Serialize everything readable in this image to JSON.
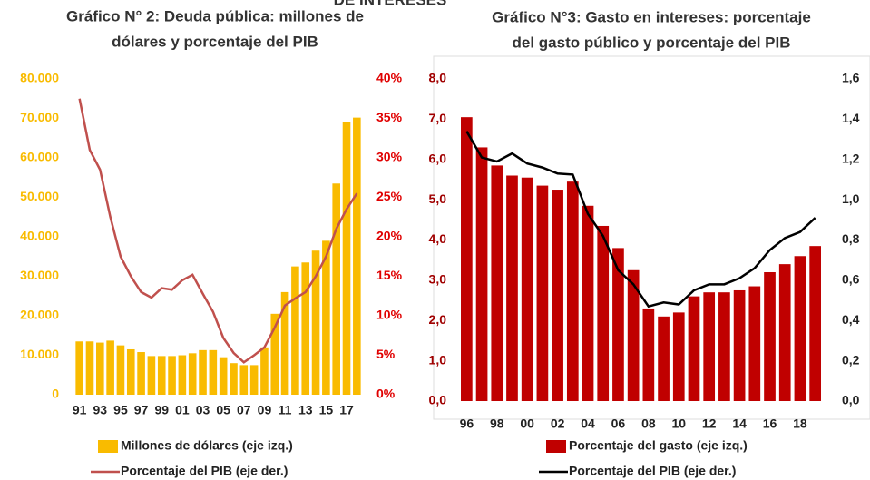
{
  "header": "DE INTERESES",
  "chart_data": [
    {
      "type": "bar",
      "title": [
        "Gráfico N° 2: Deuda pública: millones de",
        "dólares y porcentaje del PIB"
      ],
      "categories": [
        "91",
        null,
        "93",
        null,
        "95",
        null,
        "97",
        null,
        "99",
        null,
        "01",
        null,
        "03",
        null,
        "05",
        null,
        "07",
        null,
        "09",
        null,
        "11",
        null,
        "13",
        null,
        "15",
        null,
        "17",
        null
      ],
      "series": [
        {
          "name": "Millones de dólares (eje izq.)",
          "type": "bar",
          "color": "#f9bb00",
          "axis": "y",
          "values": [
            13500,
            13500,
            13200,
            13700,
            12500,
            11500,
            10800,
            9800,
            9800,
            9800,
            10000,
            10500,
            11300,
            11300,
            9500,
            8000,
            7500,
            7500,
            12000,
            20500,
            26000,
            32500,
            33500,
            36500,
            39000,
            53500,
            69000,
            70200
          ]
        },
        {
          "name": "Porcentaje del PIB (eje der.)",
          "type": "line",
          "color": "#c0504d",
          "axis": "y2",
          "values": [
            37.5,
            31,
            28.5,
            22.5,
            17.5,
            15,
            13,
            12.3,
            13.5,
            13.3,
            14.5,
            15.2,
            12.8,
            10.5,
            7.2,
            5.3,
            4.1,
            5,
            6,
            8.5,
            11.3,
            12.2,
            13,
            15,
            17.5,
            21,
            23.5,
            25.5
          ]
        }
      ],
      "ylim": [
        0,
        80000
      ],
      "yticks": [
        0,
        {
          "value": 10000,
          "label": "10.000"
        },
        {
          "value": 20000,
          "label": "20.000"
        },
        {
          "value": 30000,
          "label": "30.000"
        },
        {
          "value": 40000,
          "label": "40.000"
        },
        {
          "value": 50000,
          "label": "50.000"
        },
        {
          "value": 60000,
          "label": "60.000"
        },
        {
          "value": 70000,
          "label": "70.000"
        },
        {
          "value": 80000,
          "label": "80.000"
        }
      ],
      "ytick_color": "#f9bb00",
      "y2lim": [
        0,
        40
      ],
      "y2ticks": [
        {
          "value": 0,
          "label": "0%"
        },
        {
          "value": 5,
          "label": "5%"
        },
        {
          "value": 10,
          "label": "10%"
        },
        {
          "value": 15,
          "label": "15%"
        },
        {
          "value": 20,
          "label": "20%"
        },
        {
          "value": 25,
          "label": "25%"
        },
        {
          "value": 30,
          "label": "30%"
        },
        {
          "value": 35,
          "label": "35%"
        },
        {
          "value": 40,
          "label": "40%"
        }
      ],
      "y2tick_color": "#e00000",
      "grid": false
    },
    {
      "type": "bar",
      "title": [
        "Gráfico N°3: Gasto en intereses: porcentaje",
        "del gasto público y porcentaje del PIB"
      ],
      "categories": [
        "96",
        null,
        "98",
        null,
        "00",
        null,
        "02",
        null,
        "04",
        null,
        "06",
        null,
        "08",
        null,
        "10",
        null,
        "12",
        null,
        "14",
        null,
        "16",
        null,
        "18",
        null
      ],
      "series": [
        {
          "name": "Porcentaje del gasto (eje izq.)",
          "type": "bar",
          "color": "#c00000",
          "axis": "y",
          "values": [
            7.05,
            6.3,
            5.85,
            5.6,
            5.55,
            5.35,
            5.25,
            5.45,
            4.85,
            4.35,
            3.8,
            3.25,
            2.3,
            2.1,
            2.2,
            2.6,
            2.7,
            2.7,
            2.75,
            2.85,
            3.2,
            3.4,
            3.6,
            3.85
          ]
        },
        {
          "name": "Porcentaje del PIB (eje der.)",
          "type": "line",
          "color": "#000000",
          "axis": "y2",
          "values": [
            1.34,
            1.21,
            1.19,
            1.23,
            1.18,
            1.16,
            1.13,
            1.125,
            0.93,
            0.82,
            0.65,
            0.58,
            0.47,
            0.49,
            0.48,
            0.55,
            0.58,
            0.58,
            0.61,
            0.66,
            0.75,
            0.81,
            0.84,
            0.91
          ]
        }
      ],
      "ylim": [
        0,
        8
      ],
      "yticks": [
        {
          "value": 0,
          "label": "0,0"
        },
        {
          "value": 1,
          "label": "1,0"
        },
        {
          "value": 2,
          "label": "2,0"
        },
        {
          "value": 3,
          "label": "3,0"
        },
        {
          "value": 4,
          "label": "4,0"
        },
        {
          "value": 5,
          "label": "5,0"
        },
        {
          "value": 6,
          "label": "6,0"
        },
        {
          "value": 7,
          "label": "7,0"
        },
        {
          "value": 8,
          "label": "8,0"
        }
      ],
      "ytick_color": "#a00000",
      "y2lim": [
        0,
        1.6
      ],
      "y2ticks": [
        {
          "value": 0,
          "label": "0,0"
        },
        {
          "value": 0.2,
          "label": "0,2"
        },
        {
          "value": 0.4,
          "label": "0,4"
        },
        {
          "value": 0.6,
          "label": "0,6"
        },
        {
          "value": 0.8,
          "label": "0,8"
        },
        {
          "value": 1,
          "label": "1,0"
        },
        {
          "value": 1.2,
          "label": "1,2"
        },
        {
          "value": 1.4,
          "label": "1,4"
        },
        {
          "value": 1.6,
          "label": "1,6"
        }
      ],
      "y2tick_color": "#222222",
      "grid": false
    }
  ]
}
